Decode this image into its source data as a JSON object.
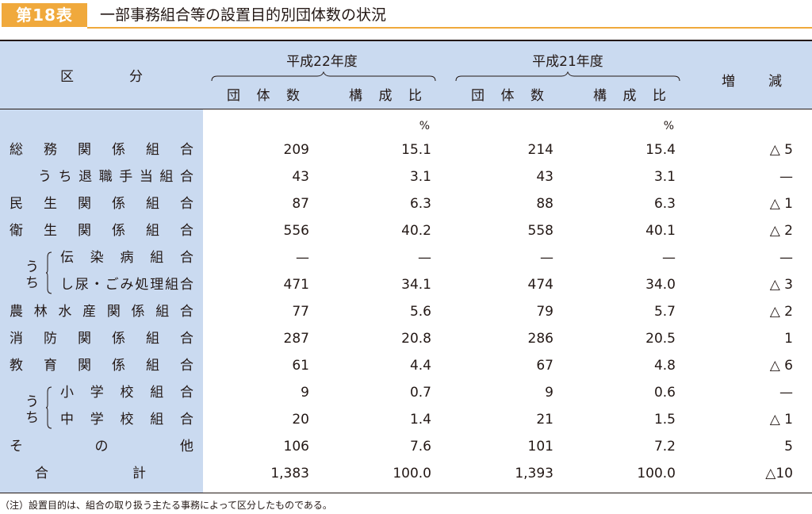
{
  "title": {
    "badge": "第18表",
    "text": "一部事務組合等の設置目的別団体数の状況"
  },
  "header": {
    "category": [
      "区",
      "分"
    ],
    "year22": "平成22年度",
    "year21": "平成21年度",
    "count": [
      "団",
      "体",
      "数"
    ],
    "ratio": [
      "構",
      "成",
      "比"
    ],
    "change": [
      "増",
      "減"
    ]
  },
  "percent_unit": "%",
  "rows": [
    {
      "label": [
        "総",
        "務",
        "関",
        "係",
        "組",
        "合"
      ],
      "c22": "209",
      "r22": "15.1",
      "c21": "214",
      "r21": "15.4",
      "change": "△ 5"
    },
    {
      "label": [
        "う",
        "ち",
        "退",
        "職",
        "手",
        "当",
        "組",
        "合"
      ],
      "c22": "43",
      "r22": "3.1",
      "c21": "43",
      "r21": "3.1",
      "change": "—"
    },
    {
      "label": [
        "民",
        "生",
        "関",
        "係",
        "組",
        "合"
      ],
      "c22": "87",
      "r22": "6.3",
      "c21": "88",
      "r21": "6.3",
      "change": "△ 1"
    },
    {
      "label": [
        "衛",
        "生",
        "関",
        "係",
        "組",
        "合"
      ],
      "c22": "556",
      "r22": "40.2",
      "c21": "558",
      "r21": "40.1",
      "change": "△ 2"
    },
    {
      "label": [
        "伝",
        "染",
        "病",
        "組",
        "合"
      ],
      "c22": "—",
      "r22": "—",
      "c21": "—",
      "r21": "—",
      "change": "—"
    },
    {
      "label": [
        "し",
        "尿",
        "・",
        "ご",
        "み",
        "処",
        "理",
        "組",
        "合"
      ],
      "c22": "471",
      "r22": "34.1",
      "c21": "474",
      "r21": "34.0",
      "change": "△ 3"
    },
    {
      "label": [
        "農",
        "林",
        "水",
        "産",
        "関",
        "係",
        "組",
        "合"
      ],
      "c22": "77",
      "r22": "5.6",
      "c21": "79",
      "r21": "5.7",
      "change": "△ 2"
    },
    {
      "label": [
        "消",
        "防",
        "関",
        "係",
        "組",
        "合"
      ],
      "c22": "287",
      "r22": "20.8",
      "c21": "286",
      "r21": "20.5",
      "change": "1"
    },
    {
      "label": [
        "教",
        "育",
        "関",
        "係",
        "組",
        "合"
      ],
      "c22": "61",
      "r22": "4.4",
      "c21": "67",
      "r21": "4.8",
      "change": "△ 6"
    },
    {
      "label": [
        "小",
        "学",
        "校",
        "組",
        "合"
      ],
      "c22": "9",
      "r22": "0.7",
      "c21": "9",
      "r21": "0.6",
      "change": "—"
    },
    {
      "label": [
        "中",
        "学",
        "校",
        "組",
        "合"
      ],
      "c22": "20",
      "r22": "1.4",
      "c21": "21",
      "r21": "1.5",
      "change": "△ 1"
    },
    {
      "label": [
        "そ",
        "の",
        "他"
      ],
      "c22": "106",
      "r22": "7.6",
      "c21": "101",
      "r21": "7.2",
      "change": "5"
    },
    {
      "label": [
        "合",
        "計"
      ],
      "c22": "1,383",
      "r22": "100.0",
      "c21": "1,393",
      "r21": "100.0",
      "change": "△10"
    }
  ],
  "sub_marker": [
    "う",
    "ち"
  ],
  "footnote": "（注）設置目的は、組合の取り扱う主たる事務によって区分したものである。"
}
